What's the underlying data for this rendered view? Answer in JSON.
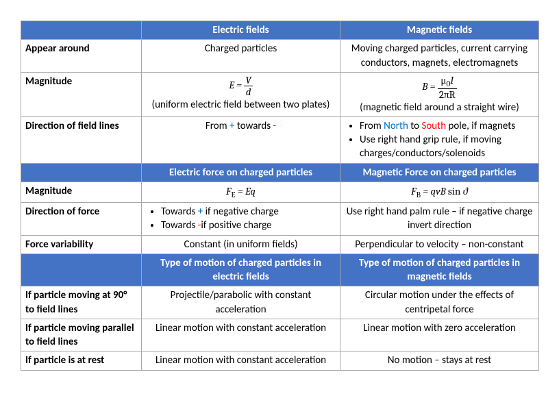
{
  "colors": {
    "header_bg": "#4472c4",
    "header_text": "#ffffff",
    "border": "#a6a6a6",
    "north": "#0070c0",
    "south": "#ff0000",
    "plus": "#0070c0",
    "minus": "#ff0000"
  },
  "sec1": {
    "h_blank": "",
    "h_elec": "Electric fields",
    "h_mag": "Magnetic fields",
    "r1_label": "Appear around",
    "r1_elec": "Charged particles",
    "r1_mag": "Moving charged particles, current carrying conductors, magnets, electromagnets",
    "r2_label": "Magnitude",
    "r2_elec_note": "(uniform electric field between two plates)",
    "r2_mag_note": "(magnetic field around a straight wire)",
    "r3_label": "Direction of field lines",
    "r3_elec_pre": "From ",
    "r3_elec_plus": "+",
    "r3_elec_mid": " towards ",
    "r3_elec_minus": "-",
    "r3_mag_li1_pre": "From ",
    "r3_mag_li1_north": "North",
    "r3_mag_li1_mid": " to ",
    "r3_mag_li1_south": "South",
    "r3_mag_li1_post": " pole, if magnets",
    "r3_mag_li2": "Use right hand grip rule, if moving charges/conductors/solenoids"
  },
  "sec2": {
    "h_elec": "Electric force on charged particles",
    "h_mag": "Magnetic Force on charged particles",
    "r1_label": "Magnitude",
    "r2_label": "Direction of force",
    "r2_elec_li1_pre": "Towards ",
    "r2_elec_li1_sign": "+",
    "r2_elec_li1_post": " if negative charge",
    "r2_elec_li2_pre": "Towards ",
    "r2_elec_li2_sign": "-",
    "r2_elec_li2_post": "if positive charge",
    "r2_mag": "Use right hand palm rule – if negative charge invert direction",
    "r3_label": "Force variability",
    "r3_elec": "Constant (in uniform fields)",
    "r3_mag": "Perpendicular to velocity – non-constant"
  },
  "sec3": {
    "h_elec": "Type of motion of charged particles in electric fields",
    "h_mag": "Type of motion of charged particles in magnetic fields",
    "r1_label": "If particle moving at 90° to field lines",
    "r1_elec": "Projectile/parabolic with constant acceleration",
    "r1_mag": "Circular motion under the effects of centripetal force",
    "r2_label": "If particle moving parallel to field lines",
    "r2_elec": "Linear motion with constant acceleration",
    "r2_mag": "Linear motion with zero acceleration",
    "r3_label": "If particle is at rest",
    "r3_elec": "Linear motion with constant acceleration",
    "r3_mag": "No motion – stays at rest"
  }
}
